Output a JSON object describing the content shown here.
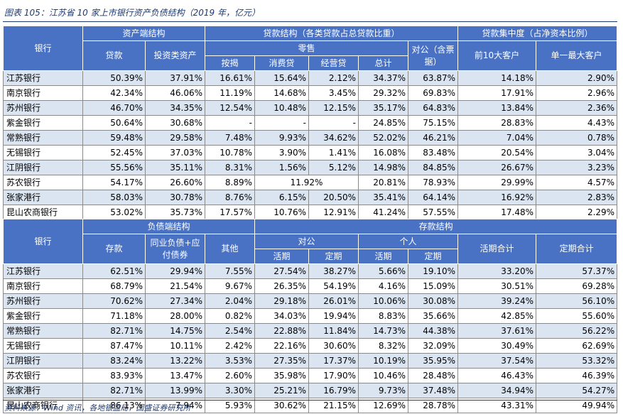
{
  "title": "图表 105：江苏省 10 家上市银行资产负债结构（2019 年，亿元）",
  "table1": {
    "h_bank": "银行",
    "h_asset": "资产端结构",
    "h_loan_struct": "贷款结构（各类贷款占总贷款比重）",
    "h_concentration": "贷款集中度（占净资本比例）",
    "h_loans": "贷款",
    "h_investment": "投资类资产",
    "h_retail": "零售",
    "h_corporate": "对公（含票据）",
    "h_top10": "前10大客户",
    "h_single": "单一最大客户",
    "h_mortgage": "按揭",
    "h_consumer": "消费贷",
    "h_business": "经营贷",
    "h_total": "总计",
    "rows": [
      {
        "bank": "江苏银行",
        "loan": "50.39%",
        "inv": "37.91%",
        "mort": "16.61%",
        "cons": "15.64%",
        "biz": "2.12%",
        "total": "34.37%",
        "corp": "63.87%",
        "top10": "14.18%",
        "top1": "2.90%"
      },
      {
        "bank": "南京银行",
        "loan": "42.34%",
        "inv": "46.06%",
        "mort": "11.19%",
        "cons": "14.68%",
        "biz": "3.45%",
        "total": "29.32%",
        "corp": "69.83%",
        "top10": "17.91%",
        "top1": "2.96%"
      },
      {
        "bank": "苏州银行",
        "loan": "46.70%",
        "inv": "34.35%",
        "mort": "12.54%",
        "cons": "10.48%",
        "biz": "12.15%",
        "total": "35.17%",
        "corp": "64.83%",
        "top10": "13.84%",
        "top1": "2.36%"
      },
      {
        "bank": "紫金银行",
        "loan": "50.64%",
        "inv": "30.68%",
        "mort": "-",
        "cons": "-",
        "biz": "-",
        "total": "24.85%",
        "corp": "75.15%",
        "top10": "28.83%",
        "top1": "4.43%"
      },
      {
        "bank": "常熟银行",
        "loan": "59.48%",
        "inv": "29.58%",
        "mort": "7.48%",
        "cons": "9.93%",
        "biz": "34.62%",
        "total": "52.02%",
        "corp": "46.21%",
        "top10": "7.04%",
        "top1": "0.78%"
      },
      {
        "bank": "无锡银行",
        "loan": "52.45%",
        "inv": "37.03%",
        "mort": "10.78%",
        "cons": "3.90%",
        "biz": "1.41%",
        "total": "16.08%",
        "corp": "83.48%",
        "top10": "20.54%",
        "top1": "3.04%"
      },
      {
        "bank": "江阴银行",
        "loan": "55.56%",
        "inv": "35.11%",
        "mort": "8.31%",
        "cons": "1.56%",
        "biz": "5.12%",
        "total": "14.98%",
        "corp": "84.85%",
        "top10": "26.67%",
        "top1": "3.23%"
      },
      {
        "bank": "苏农银行",
        "loan": "54.17%",
        "inv": "26.60%",
        "mort": "8.89%",
        "cons_biz": "11.92%",
        "total": "20.81%",
        "corp": "78.93%",
        "top10": "29.99%",
        "top1": "4.57%"
      },
      {
        "bank": "张家港行",
        "loan": "58.03%",
        "inv": "30.78%",
        "mort": "8.76%",
        "cons": "6.15%",
        "biz": "20.50%",
        "total": "35.41%",
        "corp": "64.14%",
        "top10": "16.92%",
        "top1": "2.83%"
      },
      {
        "bank": "昆山农商银行",
        "loan": "53.02%",
        "inv": "35.73%",
        "mort": "17.57%",
        "cons": "10.76%",
        "biz": "12.91%",
        "total": "41.24%",
        "corp": "57.55%",
        "top10": "17.48%",
        "top1": "2.29%"
      }
    ]
  },
  "table2": {
    "h_bank": "银行",
    "h_liab": "负债端结构",
    "h_dep_struct": "存款结构",
    "h_deposit": "存款",
    "h_interbank": "同业负债+应付债券",
    "h_other": "其他",
    "h_corporate": "对公",
    "h_personal": "个人",
    "h_demand_total": "活期合计",
    "h_time_total": "定期合计",
    "h_demand": "活期",
    "h_time": "定期",
    "rows": [
      {
        "bank": "江苏银行",
        "dep": "62.51%",
        "ib": "29.94%",
        "oth": "7.55%",
        "cd": "27.54%",
        "ct": "38.27%",
        "pd": "5.66%",
        "pt": "19.10%",
        "dt": "33.20%",
        "tt": "57.37%"
      },
      {
        "bank": "南京银行",
        "dep": "68.79%",
        "ib": "21.54%",
        "oth": "9.67%",
        "cd": "26.35%",
        "ct": "54.19%",
        "pd": "4.16%",
        "pt": "15.09%",
        "dt": "30.51%",
        "tt": "69.28%"
      },
      {
        "bank": "苏州银行",
        "dep": "70.62%",
        "ib": "27.34%",
        "oth": "2.04%",
        "cd": "29.18%",
        "ct": "26.01%",
        "pd": "10.06%",
        "pt": "30.08%",
        "dt": "39.24%",
        "tt": "56.10%"
      },
      {
        "bank": "紫金银行",
        "dep": "71.18%",
        "ib": "28.00%",
        "oth": "0.82%",
        "cd": "34.03%",
        "ct": "19.94%",
        "pd": "8.83%",
        "pt": "35.66%",
        "dt": "42.85%",
        "tt": "55.60%"
      },
      {
        "bank": "常熟银行",
        "dep": "82.71%",
        "ib": "14.75%",
        "oth": "2.54%",
        "cd": "22.88%",
        "ct": "11.84%",
        "pd": "14.73%",
        "pt": "44.38%",
        "dt": "37.61%",
        "tt": "56.22%"
      },
      {
        "bank": "无锡银行",
        "dep": "87.47%",
        "ib": "10.11%",
        "oth": "2.42%",
        "cd": "22.16%",
        "ct": "30.60%",
        "pd": "8.32%",
        "pt": "32.09%",
        "dt": "30.49%",
        "tt": "62.69%"
      },
      {
        "bank": "江阴银行",
        "dep": "83.24%",
        "ib": "13.22%",
        "oth": "3.53%",
        "cd": "27.35%",
        "ct": "17.37%",
        "pd": "10.19%",
        "pt": "35.95%",
        "dt": "37.54%",
        "tt": "53.32%"
      },
      {
        "bank": "苏农银行",
        "dep": "83.93%",
        "ib": "13.47%",
        "oth": "2.60%",
        "cd": "35.98%",
        "ct": "17.90%",
        "pd": "10.46%",
        "pt": "28.48%",
        "dt": "46.43%",
        "tt": "46.39%"
      },
      {
        "bank": "张家港行",
        "dep": "82.71%",
        "ib": "13.99%",
        "oth": "3.30%",
        "cd": "25.21%",
        "ct": "16.79%",
        "pd": "9.73%",
        "pt": "37.48%",
        "dt": "34.94%",
        "tt": "54.27%"
      },
      {
        "bank": "昆山农商银行",
        "dep": "86.13%",
        "ib": "7.94%",
        "oth": "5.93%",
        "cd": "30.62%",
        "ct": "21.15%",
        "pd": "12.69%",
        "pt": "28.78%",
        "dt": "43.31%",
        "tt": "49.94%"
      }
    ]
  },
  "source": "资料来源：Wind 资讯，各地银监局，国盛证券研究所"
}
